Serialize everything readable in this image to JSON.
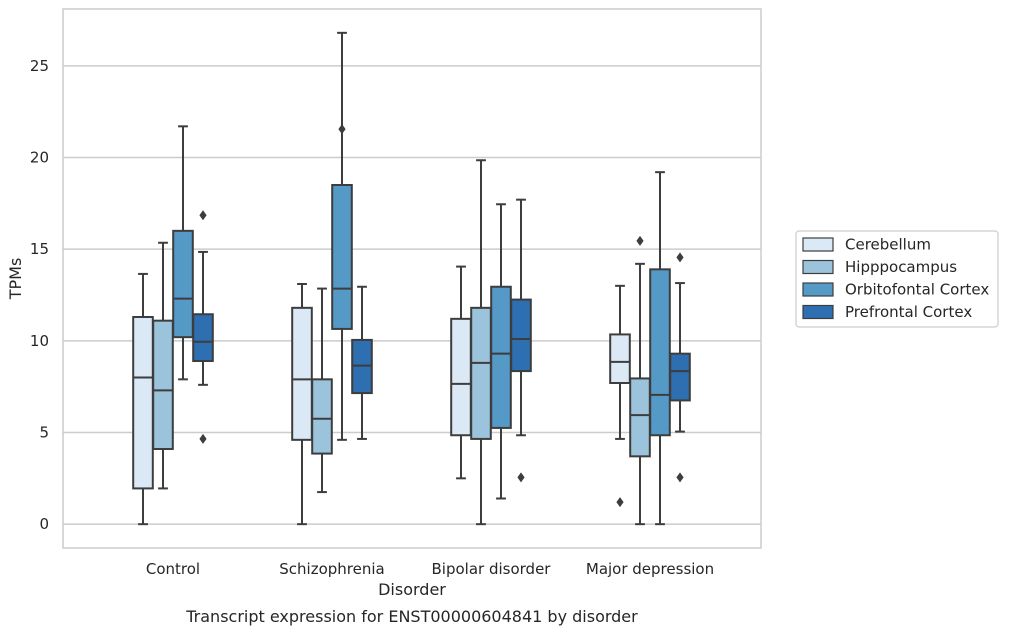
{
  "chart_data": {
    "type": "box",
    "title": "",
    "caption": "Transcript expression for ENST00000604841 by disorder",
    "xlabel": "Disorder",
    "ylabel": "TPMs",
    "ylim": [
      -1.3,
      28.1
    ],
    "yticks": [
      0,
      5,
      10,
      15,
      20,
      25
    ],
    "grid": "horizontal",
    "legend_position": "right",
    "categories": [
      "Control",
      "Schizophrenia",
      "Bipolar disorder",
      "Major depression"
    ],
    "series": [
      {
        "name": "Cerebellum",
        "color": "#dbe8f5",
        "boxes": [
          {
            "whisker_low": 0,
            "q1": 1.95,
            "median": 8.0,
            "q3": 11.3,
            "whisker_high": 13.65,
            "outliers": []
          },
          {
            "whisker_low": 0,
            "q1": 4.6,
            "median": 7.9,
            "q3": 11.8,
            "whisker_high": 13.1,
            "outliers": []
          },
          {
            "whisker_low": 2.5,
            "q1": 4.85,
            "median": 7.65,
            "q3": 11.2,
            "whisker_high": 14.05,
            "outliers": []
          },
          {
            "whisker_low": 4.65,
            "q1": 7.7,
            "median": 8.85,
            "q3": 10.35,
            "whisker_high": 13.0,
            "outliers": [
              1.2
            ]
          }
        ]
      },
      {
        "name": "Hipppocampus",
        "color": "#9cc3dc",
        "boxes": [
          {
            "whisker_low": 1.95,
            "q1": 4.1,
            "median": 7.3,
            "q3": 11.1,
            "whisker_high": 15.35,
            "outliers": []
          },
          {
            "whisker_low": 1.75,
            "q1": 3.85,
            "median": 5.75,
            "q3": 7.9,
            "whisker_high": 12.85,
            "outliers": []
          },
          {
            "whisker_low": 0,
            "q1": 4.65,
            "median": 8.8,
            "q3": 11.8,
            "whisker_high": 19.85,
            "outliers": []
          },
          {
            "whisker_low": 0,
            "q1": 3.7,
            "median": 5.95,
            "q3": 7.95,
            "whisker_high": 14.2,
            "outliers": [
              15.45
            ]
          }
        ]
      },
      {
        "name": "Orbitofontal Cortex",
        "color": "#5599c7",
        "boxes": [
          {
            "whisker_low": 7.9,
            "q1": 10.2,
            "median": 12.3,
            "q3": 16.0,
            "whisker_high": 21.7,
            "outliers": []
          },
          {
            "whisker_low": 4.6,
            "q1": 10.65,
            "median": 12.85,
            "q3": 18.5,
            "whisker_high": 26.8,
            "outliers": [
              21.55
            ]
          },
          {
            "whisker_low": 1.4,
            "q1": 5.25,
            "median": 9.3,
            "q3": 12.95,
            "whisker_high": 17.45,
            "outliers": []
          },
          {
            "whisker_low": 0,
            "q1": 4.85,
            "median": 7.05,
            "q3": 13.9,
            "whisker_high": 19.2,
            "outliers": []
          }
        ]
      },
      {
        "name": "Prefrontal Cortex",
        "color": "#2d6fb0",
        "boxes": [
          {
            "whisker_low": 7.6,
            "q1": 8.9,
            "median": 9.95,
            "q3": 11.45,
            "whisker_high": 14.85,
            "outliers": [
              16.85,
              4.65
            ]
          },
          {
            "whisker_low": 4.65,
            "q1": 7.15,
            "median": 8.65,
            "q3": 10.05,
            "whisker_high": 12.95,
            "outliers": []
          },
          {
            "whisker_low": 4.85,
            "q1": 8.35,
            "median": 10.1,
            "q3": 12.25,
            "whisker_high": 17.7,
            "outliers": [
              2.55
            ]
          },
          {
            "whisker_low": 5.05,
            "q1": 6.75,
            "median": 8.35,
            "q3": 9.3,
            "whisker_high": 13.15,
            "outliers": [
              14.55,
              2.55
            ]
          }
        ]
      }
    ]
  }
}
